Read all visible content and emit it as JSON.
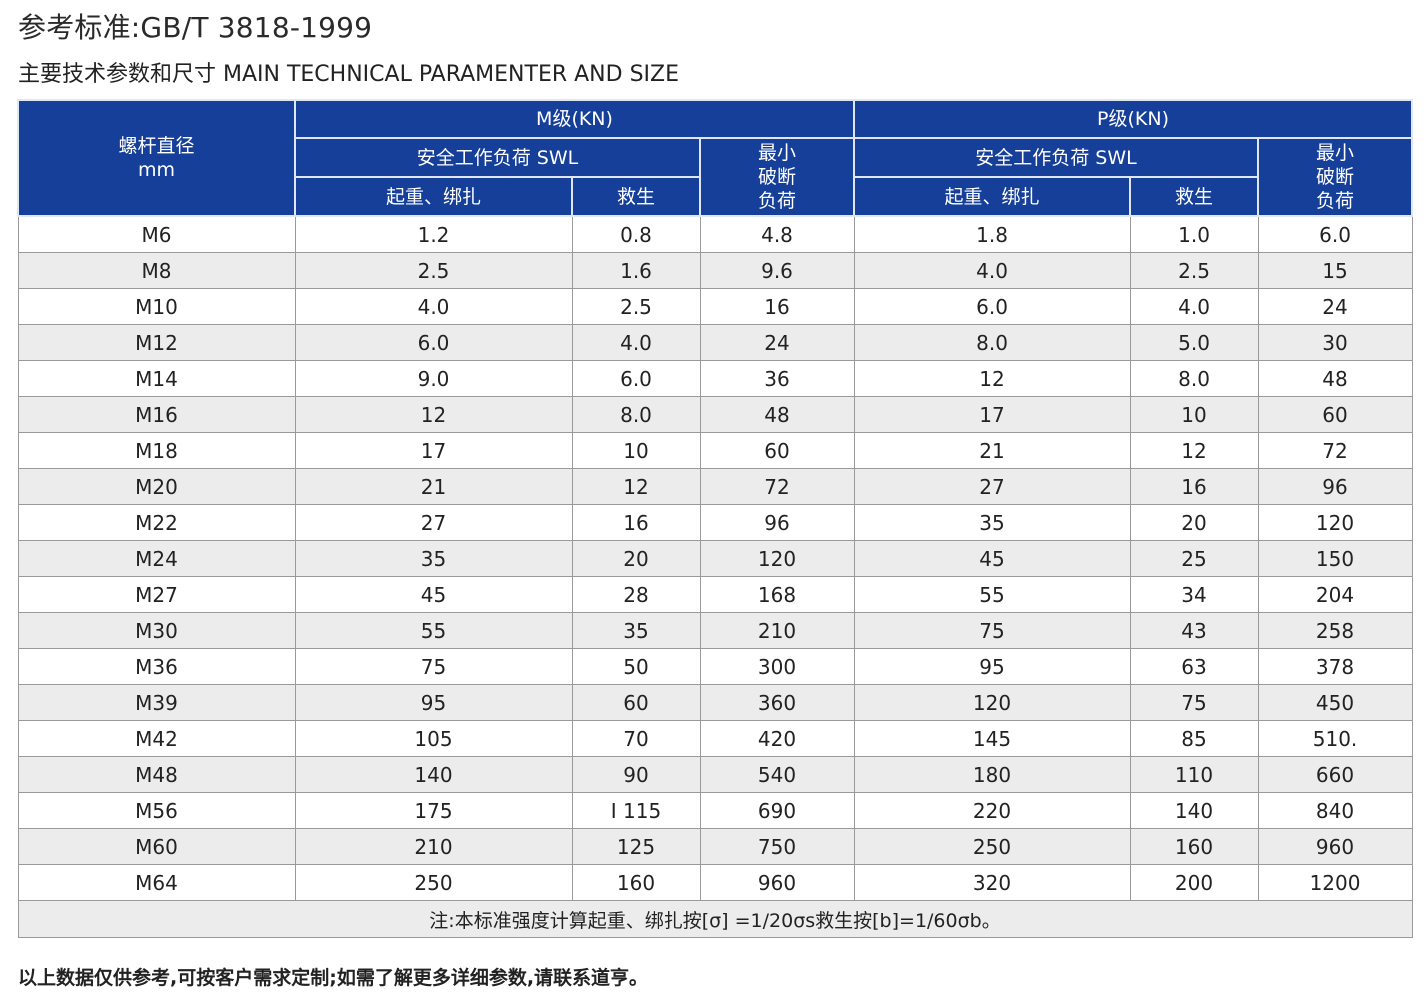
{
  "header": {
    "standard": "参考标准:GB/T 3818-1999",
    "subtitle": "主要技术参数和尺寸 MAIN TECHNICAL PARAMENTER AND SIZE"
  },
  "table": {
    "col_diameter_line1": "螺杆直径",
    "col_diameter_line2": "mm",
    "group_m": "M级(KN)",
    "group_p": "P级(KN)",
    "swl": "安全工作负荷 SWL",
    "lifting": "起重、绑扎",
    "rescue": "救生",
    "min_break_l1": "最小",
    "min_break_l2": "破断",
    "min_break_l3": "负荷",
    "rows": [
      [
        "M6",
        "1.2",
        "0.8",
        "4.8",
        "1.8",
        "1.0",
        "6.0"
      ],
      [
        "M8",
        "2.5",
        "1.6",
        "9.6",
        "4.0",
        "2.5",
        "15"
      ],
      [
        "M10",
        "4.0",
        "2.5",
        "16",
        "6.0",
        "4.0",
        "24"
      ],
      [
        "M12",
        "6.0",
        "4.0",
        "24",
        "8.0",
        "5.0",
        "30"
      ],
      [
        "M14",
        "9.0",
        "6.0",
        "36",
        "12",
        "8.0",
        "48"
      ],
      [
        "M16",
        "12",
        "8.0",
        "48",
        "17",
        "10",
        "60"
      ],
      [
        "M18",
        "17",
        "10",
        "60",
        "21",
        "12",
        "72"
      ],
      [
        "M20",
        "21",
        "12",
        "72",
        "27",
        "16",
        "96"
      ],
      [
        "M22",
        "27",
        "16",
        "96",
        "35",
        "20",
        "120"
      ],
      [
        "M24",
        "35",
        "20",
        "120",
        "45",
        "25",
        "150"
      ],
      [
        "M27",
        "45",
        "28",
        "168",
        "55",
        "34",
        "204"
      ],
      [
        "M30",
        "55",
        "35",
        "210",
        "75",
        "43",
        "258"
      ],
      [
        "M36",
        "75",
        "50",
        "300",
        "95",
        "63",
        "378"
      ],
      [
        "M39",
        "95",
        "60",
        "360",
        "120",
        "75",
        "450"
      ],
      [
        "M42",
        "105",
        "70",
        "420",
        "145",
        "85",
        "510."
      ],
      [
        "M48",
        "140",
        "90",
        "540",
        "180",
        "110",
        "660"
      ],
      [
        "M56",
        "175",
        "I 115",
        "690",
        "220",
        "140",
        "840"
      ],
      [
        "M60",
        "210",
        "125",
        "750",
        "250",
        "160",
        "960"
      ],
      [
        "M64",
        "250",
        "160",
        "960",
        "320",
        "200",
        "1200"
      ]
    ],
    "footnote": "注:本标准强度计算起重、绑扎按[σ] =1/20σs救生按[b]=1/60σb。"
  },
  "footer": {
    "note": "以上数据仅供参考,可按客户需求定制;如需了解更多详细参数,请联系道亨。"
  },
  "colors": {
    "header_bg": "#153f98",
    "row_alt": "#ececec"
  }
}
